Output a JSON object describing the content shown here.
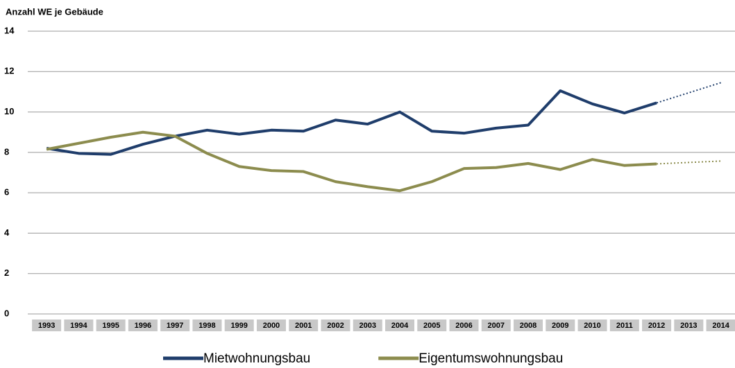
{
  "chart_data": {
    "type": "line",
    "title": "Anzahl WE je Gebäude",
    "categories": [
      "1993",
      "1994",
      "1995",
      "1996",
      "1997",
      "1998",
      "1999",
      "2000",
      "2001",
      "2002",
      "2003",
      "2004",
      "2005",
      "2006",
      "2007",
      "2008",
      "2009",
      "2010",
      "2011",
      "2012",
      "2013",
      "2014"
    ],
    "series": [
      {
        "name": "Mietwohnungsbau",
        "color": "#1f3d6b",
        "values": [
          8.2,
          7.95,
          7.9,
          8.4,
          8.8,
          9.1,
          8.9,
          9.1,
          9.05,
          9.6,
          9.4,
          10.0,
          9.05,
          8.95,
          9.2,
          9.35,
          11.05,
          10.4,
          9.95,
          10.45,
          null,
          null
        ]
      },
      {
        "name": "Eigentumswohnungsbau",
        "color": "#8c8c4e",
        "values": [
          8.15,
          8.45,
          8.75,
          9.0,
          8.8,
          7.95,
          7.3,
          7.1,
          7.05,
          6.55,
          6.3,
          6.1,
          6.55,
          7.2,
          7.25,
          7.45,
          7.15,
          7.65,
          7.35,
          7.43,
          null,
          null
        ]
      },
      {
        "color": "#1f3d6b",
        "dotted": true,
        "values": [
          null,
          null,
          null,
          null,
          null,
          null,
          null,
          null,
          null,
          null,
          null,
          null,
          null,
          null,
          null,
          null,
          null,
          null,
          null,
          10.45,
          10.95,
          11.45
        ]
      },
      {
        "color": "#8c8c4e",
        "dotted": true,
        "values": [
          null,
          null,
          null,
          null,
          null,
          null,
          null,
          null,
          null,
          null,
          null,
          null,
          null,
          null,
          null,
          null,
          null,
          null,
          null,
          7.43,
          7.5,
          7.57
        ]
      }
    ],
    "ylim": [
      0,
      14
    ],
    "yticks": [
      0,
      2,
      4,
      6,
      8,
      10,
      12,
      14
    ],
    "grid": true,
    "legend": "bottom"
  }
}
